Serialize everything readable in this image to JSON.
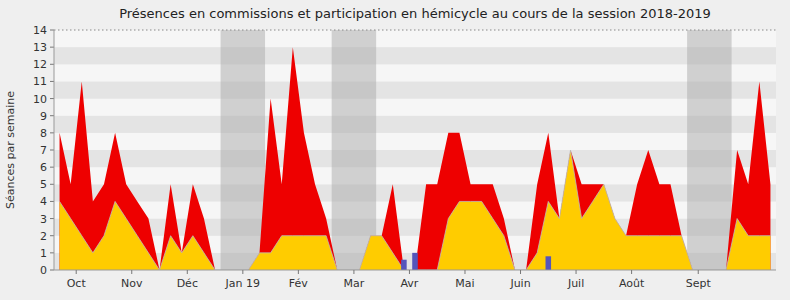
{
  "chart_data": {
    "type": "area",
    "title": "Présences en commissions et participation en hémicycle au cours de la session 2018-2019",
    "y_label": "Séances par semaine",
    "x": [
      0,
      1,
      2,
      3,
      4,
      5,
      6,
      7,
      8,
      9,
      10,
      11,
      12,
      13,
      14,
      15,
      16,
      17,
      18,
      19,
      20,
      21,
      22,
      23,
      24,
      25,
      26,
      27,
      28,
      29,
      30,
      31,
      32,
      33,
      34,
      35,
      36,
      37,
      38,
      39,
      40,
      41,
      42,
      43,
      44,
      45,
      46,
      47,
      48,
      49,
      50,
      51,
      52,
      53,
      54,
      55,
      56,
      57,
      58,
      59,
      60,
      61,
      62,
      63,
      64
    ],
    "series": [
      {
        "type": "area",
        "color": "#ee0000",
        "values": [
          8,
          5,
          11,
          4,
          5,
          8,
          5,
          4,
          3,
          0,
          5,
          1,
          5,
          3,
          0,
          0,
          0,
          0,
          1,
          10,
          5,
          13,
          8,
          5,
          3,
          0,
          0,
          0,
          2,
          2,
          5,
          0,
          0,
          5,
          5,
          8,
          8,
          5,
          5,
          5,
          3,
          0,
          0,
          5,
          8,
          3,
          7,
          5,
          5,
          5,
          3,
          2,
          5,
          7,
          5,
          5,
          2,
          0,
          0,
          0,
          0,
          7,
          5,
          11,
          5
        ]
      },
      {
        "type": "area",
        "color": "#ffcc00",
        "values": [
          4,
          3,
          2,
          1,
          2,
          4,
          3,
          2,
          1,
          0,
          2,
          1,
          2,
          1,
          0,
          0,
          0,
          0,
          1,
          1,
          2,
          2,
          2,
          2,
          2,
          0,
          0,
          0,
          2,
          2,
          1,
          0,
          0,
          0,
          0,
          3,
          4,
          4,
          4,
          3,
          2,
          0,
          0,
          1,
          4,
          3,
          7,
          3,
          4,
          5,
          3,
          2,
          2,
          2,
          2,
          2,
          2,
          0,
          0,
          0,
          0,
          3,
          2,
          2,
          2
        ]
      },
      {
        "type": "bar",
        "color": "#5555bb",
        "x": [
          31,
          32,
          44
        ],
        "values": [
          0.6,
          1.0,
          0.8
        ]
      }
    ],
    "regions": {
      "color": "#aaaaaa",
      "spans": [
        {
          "x_start": 14.5,
          "x_end": 18.5
        },
        {
          "x_start": 24.5,
          "x_end": 28.5
        },
        {
          "x_start": 56.5,
          "x_end": 60.5
        }
      ]
    },
    "reference_lines": [
      14
    ],
    "xlim": [
      -0.5,
      64.5
    ],
    "xticks": [
      {
        "value": 1.5,
        "label": "Oct"
      },
      {
        "value": 6.5,
        "label": "Nov"
      },
      {
        "value": 11.5,
        "label": "Déc"
      },
      {
        "value": 16.5,
        "label": "Jan 19"
      },
      {
        "value": 21.5,
        "label": "Fév"
      },
      {
        "value": 26.5,
        "label": "Mar"
      },
      {
        "value": 31.5,
        "label": "Avr"
      },
      {
        "value": 36.5,
        "label": "Mai"
      },
      {
        "value": 41.5,
        "label": "Juin"
      },
      {
        "value": 46.5,
        "label": "Juil"
      },
      {
        "value": 51.5,
        "label": "Août"
      },
      {
        "value": 57.5,
        "label": "Sept"
      }
    ],
    "ylim": [
      0,
      14
    ],
    "yticks": [
      0,
      1,
      2,
      3,
      4,
      5,
      6,
      7,
      8,
      9,
      10,
      11,
      12,
      13,
      14
    ]
  }
}
